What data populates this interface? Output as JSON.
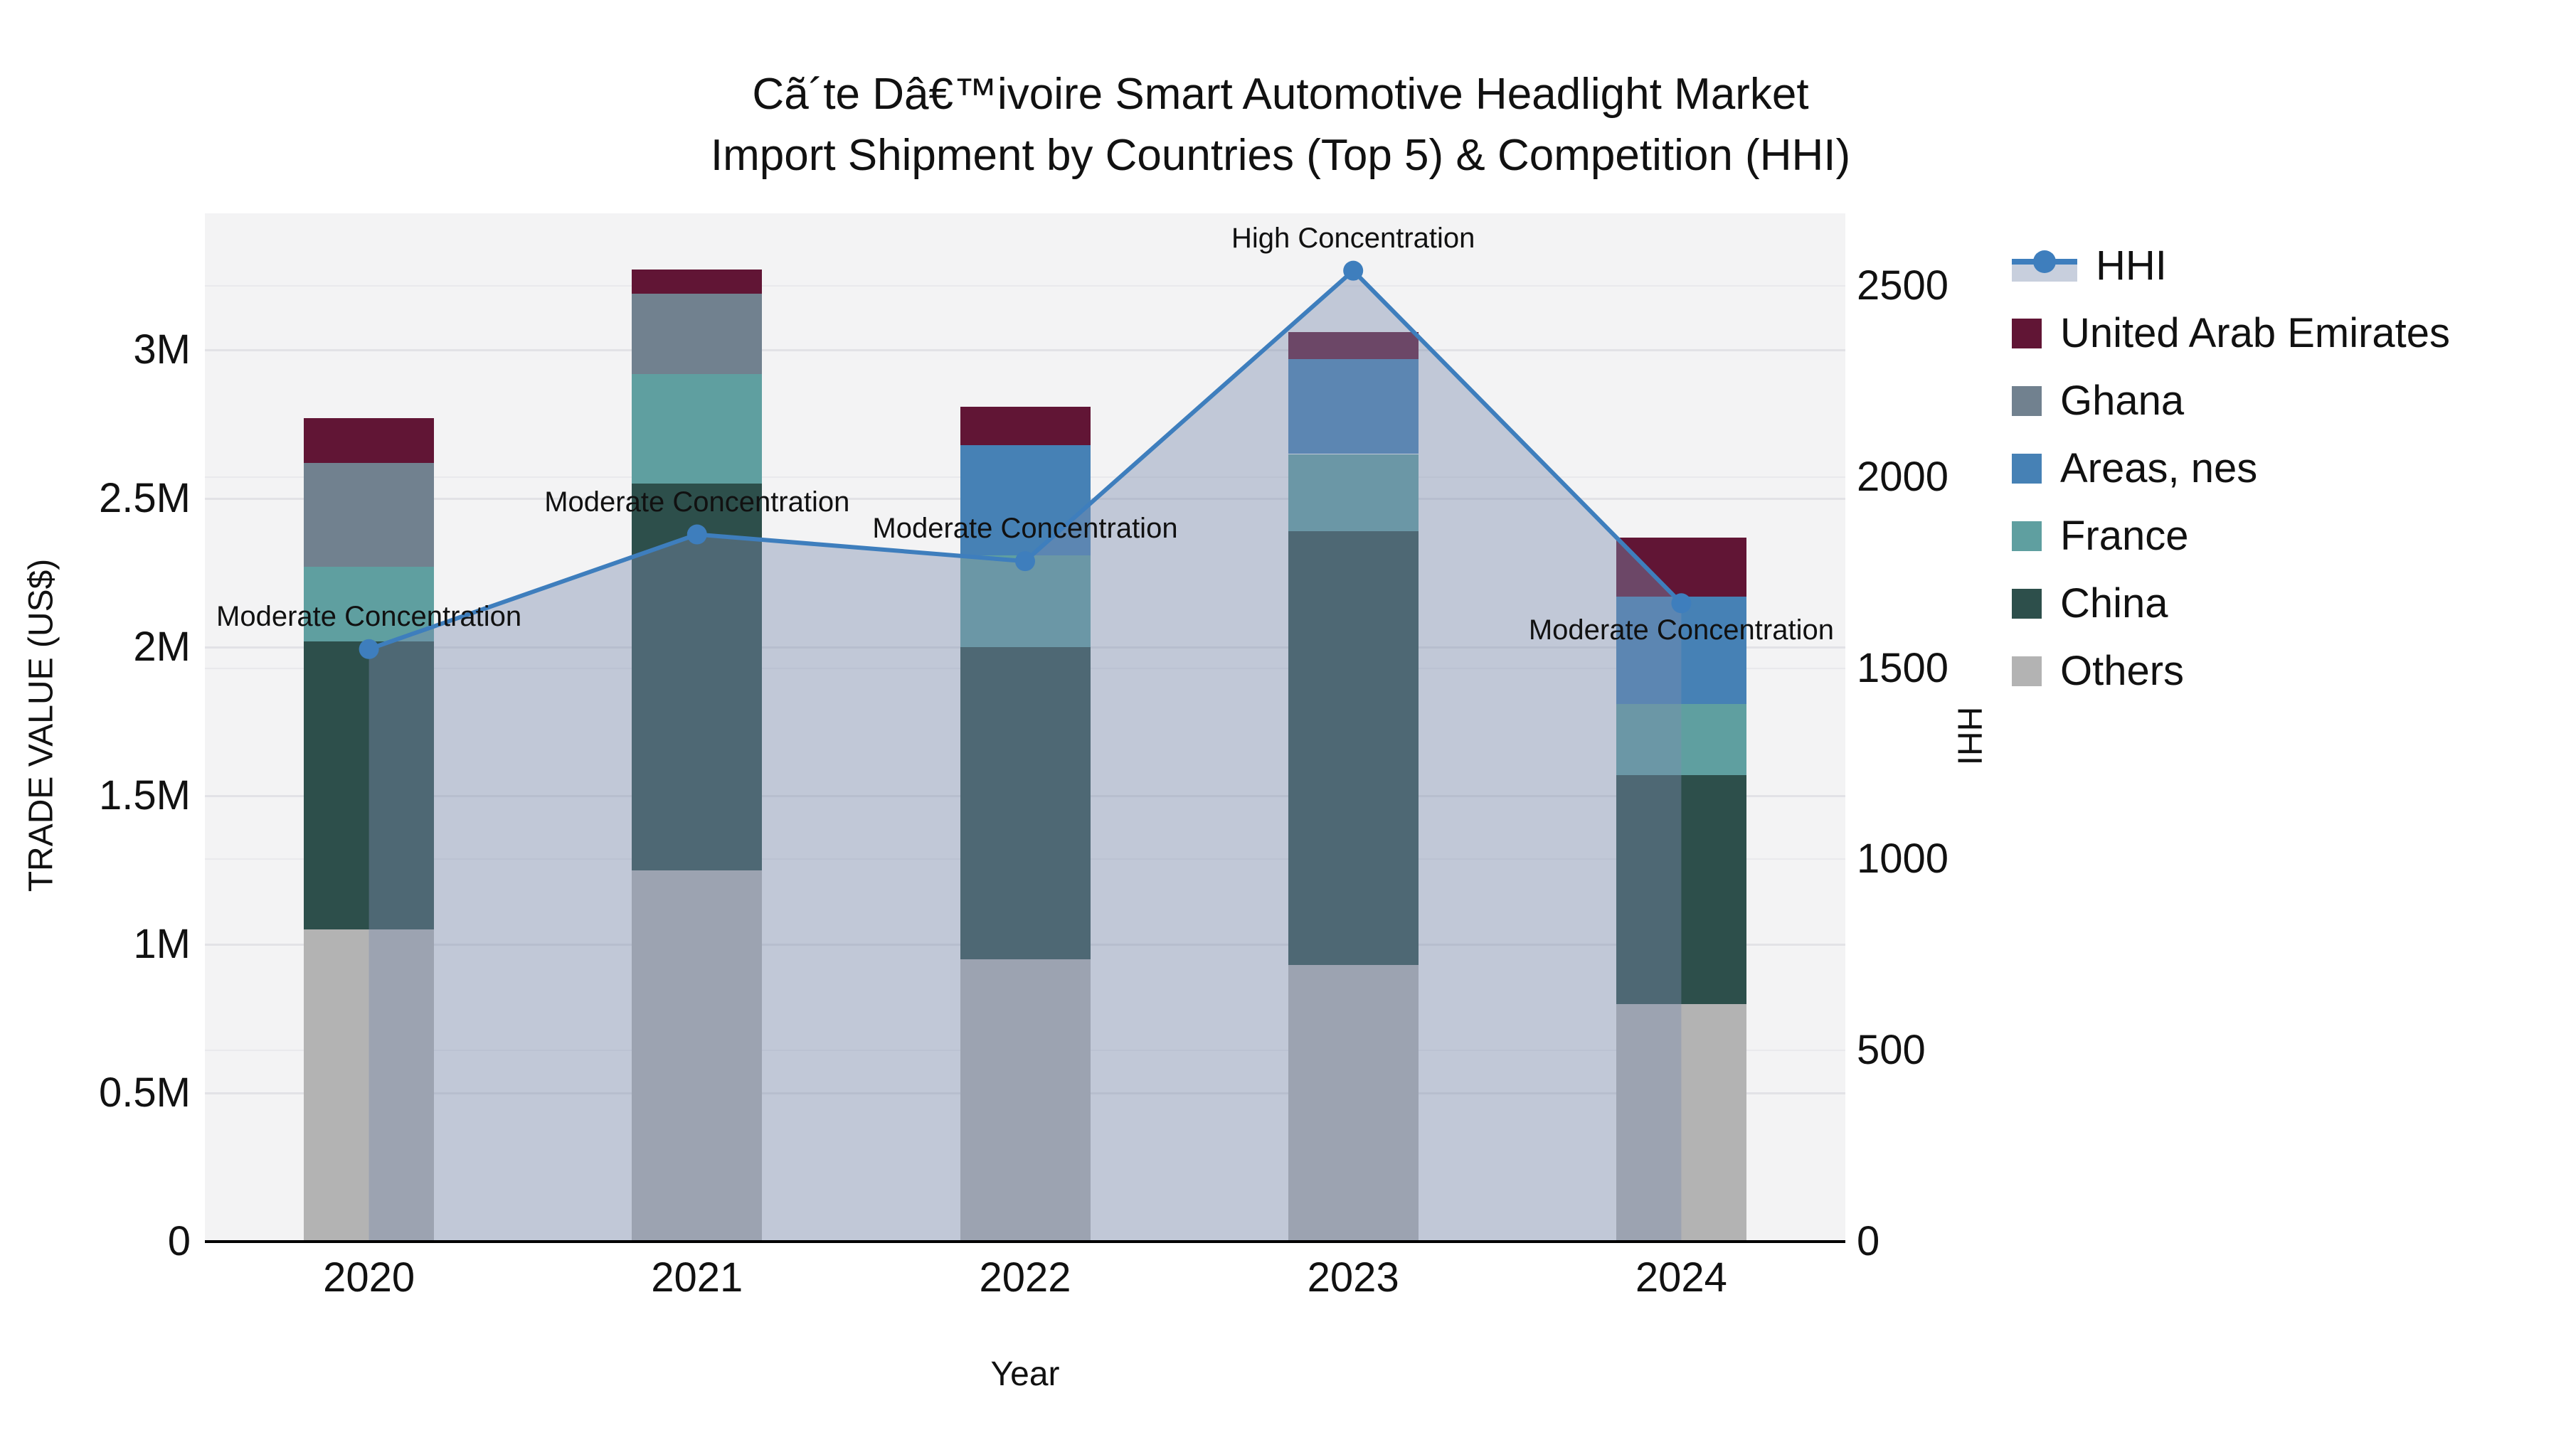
{
  "chart_data": {
    "type": "bar+line",
    "title_line1": "Cã´te Dâ€™ivoire Smart Automotive Headlight Market",
    "title_line2": "Import Shipment by Countries (Top 5) & Competition (HHI)",
    "categories": [
      "2020",
      "2021",
      "2022",
      "2023",
      "2024"
    ],
    "series": [
      {
        "name": "Others",
        "color": "#b3b3b3",
        "values": [
          1.05,
          1.25,
          0.95,
          0.93,
          0.8
        ]
      },
      {
        "name": "China",
        "color": "#2d4f4b",
        "values": [
          0.97,
          1.3,
          1.05,
          1.46,
          0.77
        ]
      },
      {
        "name": "France",
        "color": "#5f9fa0",
        "values": [
          0.25,
          0.37,
          0.31,
          0.26,
          0.24
        ]
      },
      {
        "name": "Areas, nes",
        "color": "#4681b5",
        "values": [
          0.0,
          0.0,
          0.37,
          0.32,
          0.36
        ]
      },
      {
        "name": "Ghana",
        "color": "#71818f",
        "values": [
          0.35,
          0.27,
          0.0,
          0.0,
          0.0
        ]
      },
      {
        "name": "United Arab Emirates",
        "color": "#611535",
        "values": [
          0.15,
          0.08,
          0.13,
          0.09,
          0.2
        ]
      }
    ],
    "line_series": {
      "name": "HHI",
      "axis": "right",
      "color": "#3e7ebd",
      "area_color": "rgba(125,140,175,0.42)",
      "values": [
        1550,
        1850,
        1780,
        2540,
        1670
      ]
    },
    "annotations": [
      {
        "index": 0,
        "text": "Moderate Concentration",
        "placement": "above"
      },
      {
        "index": 1,
        "text": "Moderate Concentration",
        "placement": "above"
      },
      {
        "index": 2,
        "text": "Moderate Concentration",
        "placement": "above"
      },
      {
        "index": 3,
        "text": "High Concentration",
        "placement": "above"
      },
      {
        "index": 4,
        "text": "Moderate Concentration",
        "placement": "below"
      }
    ],
    "axes": {
      "y_left": {
        "label": "TRADE VALUE (US$)",
        "max": 3.46,
        "ticks": [
          {
            "v": 0,
            "label": "0"
          },
          {
            "v": 0.5,
            "label": "0.5M"
          },
          {
            "v": 1,
            "label": "1M"
          },
          {
            "v": 1.5,
            "label": "1.5M"
          },
          {
            "v": 2,
            "label": "2M"
          },
          {
            "v": 2.5,
            "label": "2.5M"
          },
          {
            "v": 3,
            "label": "3M"
          }
        ]
      },
      "y_right": {
        "label": "HHI",
        "max": 2690,
        "ticks": [
          {
            "v": 0,
            "label": "0"
          },
          {
            "v": 500,
            "label": "500"
          },
          {
            "v": 1000,
            "label": "1000"
          },
          {
            "v": 1500,
            "label": "1500"
          },
          {
            "v": 2000,
            "label": "2000"
          },
          {
            "v": 2500,
            "label": "2500"
          }
        ]
      },
      "x": {
        "label": "Year"
      }
    },
    "legend": [
      {
        "name": "HHI",
        "type": "line",
        "color": "#3e7ebd"
      },
      {
        "name": "United Arab Emirates",
        "type": "box",
        "color": "#611535"
      },
      {
        "name": "Ghana",
        "type": "box",
        "color": "#71818f"
      },
      {
        "name": "Areas, nes",
        "type": "box",
        "color": "#4681b5"
      },
      {
        "name": "France",
        "type": "box",
        "color": "#5f9fa0"
      },
      {
        "name": "China",
        "type": "box",
        "color": "#2d4f4b"
      },
      {
        "name": "Others",
        "type": "box",
        "color": "#b3b3b3"
      }
    ],
    "background": {
      "figure": "#ffffff",
      "plot": "#f3f3f4",
      "grid_left": "#e2e2e6",
      "grid_right": "#e9e9ec",
      "axis_line": "#000000"
    }
  }
}
